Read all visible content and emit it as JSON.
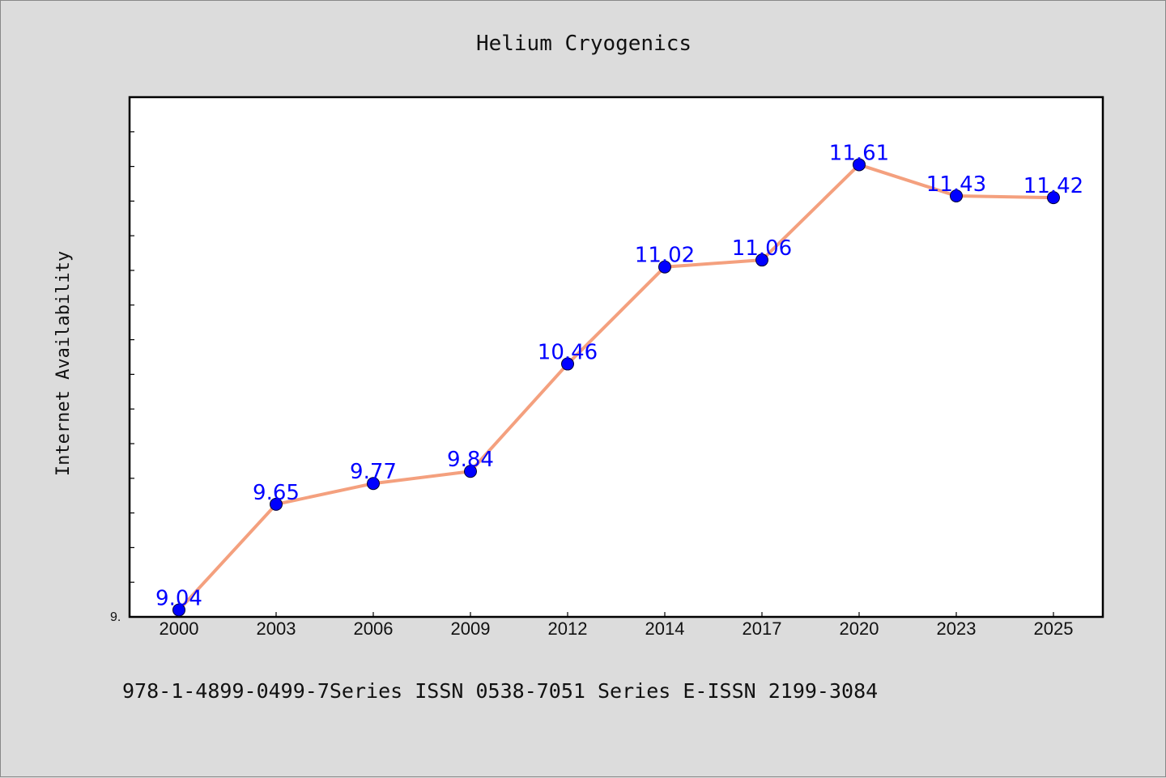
{
  "chart_data": {
    "type": "line",
    "title": "Helium Cryogenics",
    "xlabel": "",
    "ylabel": "Internet Availability",
    "categories": [
      "2000",
      "2003",
      "2006",
      "2009",
      "2012",
      "2014",
      "2017",
      "2020",
      "2023",
      "2025"
    ],
    "series": [
      {
        "values": [
          9.04,
          9.65,
          9.77,
          9.84,
          10.46,
          11.02,
          11.06,
          11.61,
          11.43,
          11.42
        ],
        "line_color": "#f4a07e",
        "marker_color": "#0000ff",
        "label_color": "#0000ff"
      }
    ],
    "y_tick_labels": [
      "9."
    ],
    "ylim": [
      9.0,
      12.0
    ],
    "grid": false,
    "legend": "none"
  },
  "footer": {
    "text": "978-1-4899-0499-7Series ISSN 0538-7051 Series E-ISSN 2199-3084"
  },
  "colors": {
    "background": "#dcdcdc",
    "plot_background": "#ffffff",
    "axis": "#000000"
  }
}
